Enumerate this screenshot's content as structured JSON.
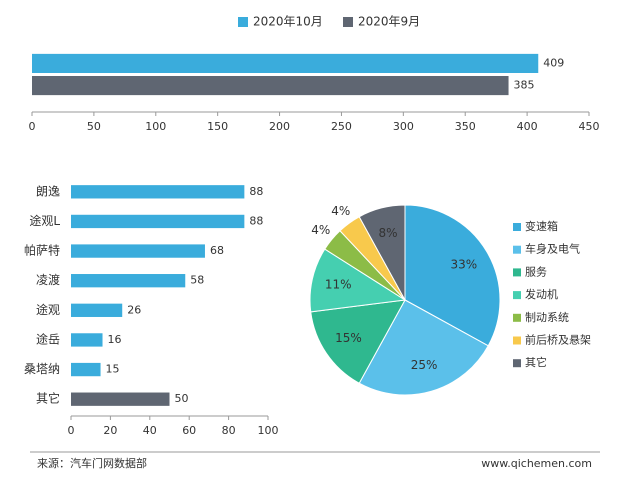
{
  "chart_data": [
    {
      "type": "bar",
      "orientation": "horizontal",
      "categories": [
        null
      ],
      "series": [
        {
          "name": "2020年10月",
          "color": "#3aacdc",
          "values": [
            409
          ]
        },
        {
          "name": "2020年9月",
          "color": "#5f6672",
          "values": [
            385
          ]
        }
      ],
      "xlim": [
        0,
        450
      ],
      "xticks": [
        0,
        50,
        100,
        150,
        200,
        250,
        300,
        350,
        400,
        450
      ],
      "legend": "top"
    },
    {
      "type": "bar",
      "orientation": "horizontal",
      "categories": [
        "朗逸",
        "途观L",
        "帕萨特",
        "凌渡",
        "途观",
        "途岳",
        "桑塔纳",
        "其它"
      ],
      "values": [
        88,
        88,
        68,
        58,
        26,
        16,
        15,
        50
      ],
      "colors": [
        "#3aacdc",
        "#3aacdc",
        "#3aacdc",
        "#3aacdc",
        "#3aacdc",
        "#3aacdc",
        "#3aacdc",
        "#5f6672"
      ],
      "xlim": [
        0,
        100
      ],
      "xticks": [
        0,
        20,
        40,
        60,
        80,
        100
      ]
    },
    {
      "type": "pie",
      "categories": [
        "变速箱",
        "车身及电气",
        "服务",
        "发动机",
        "制动系统",
        "前后桥及悬架",
        "其它"
      ],
      "values": [
        33,
        25,
        15,
        11,
        4,
        4,
        8
      ],
      "value_labels": [
        "33%",
        "25%",
        "15%",
        "11%",
        "4%",
        "4%",
        "8%"
      ],
      "colors": [
        "#3aacdc",
        "#5bc0ea",
        "#2fb88f",
        "#45cfb0",
        "#8cbc47",
        "#f8c94c",
        "#5f6672"
      ],
      "legend": "right"
    }
  ],
  "footer": {
    "source": "来源：汽车门网数据部",
    "url": "www.qichemen.com"
  }
}
